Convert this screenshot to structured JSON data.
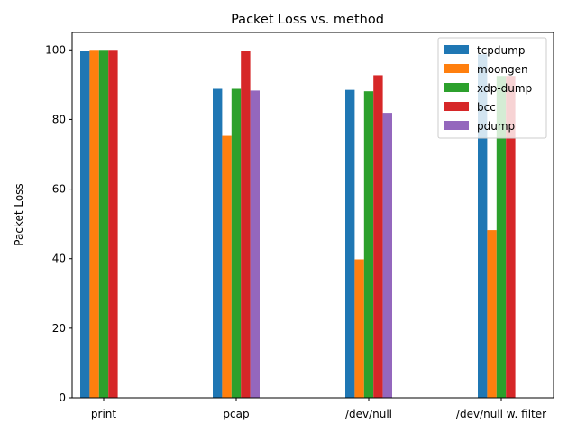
{
  "chart_data": {
    "type": "bar",
    "title": "Packet Loss vs. method",
    "xlabel": "",
    "ylabel": "Packet Loss",
    "categories": [
      "print",
      "pcap",
      "/dev/null",
      "/dev/null w. filter"
    ],
    "ylim": [
      0,
      105
    ],
    "yticks": [
      0,
      20,
      40,
      60,
      80,
      100
    ],
    "grid": false,
    "legend_position": "top-right",
    "series": [
      {
        "name": "tcpdump",
        "color": "#1f77b4",
        "values": [
          99.7,
          88.8,
          88.5,
          98.7
        ]
      },
      {
        "name": "moongen",
        "color": "#ff7f0e",
        "values": [
          100,
          75.3,
          39.8,
          48.2
        ]
      },
      {
        "name": "xdp-dump",
        "color": "#2ca02c",
        "values": [
          100,
          88.8,
          88.1,
          92.5
        ]
      },
      {
        "name": "bcc",
        "color": "#d62728",
        "values": [
          100,
          99.7,
          92.7,
          92.5
        ]
      },
      {
        "name": "pdump",
        "color": "#9467bd",
        "values": [
          null,
          88.3,
          81.9,
          null
        ]
      }
    ]
  }
}
